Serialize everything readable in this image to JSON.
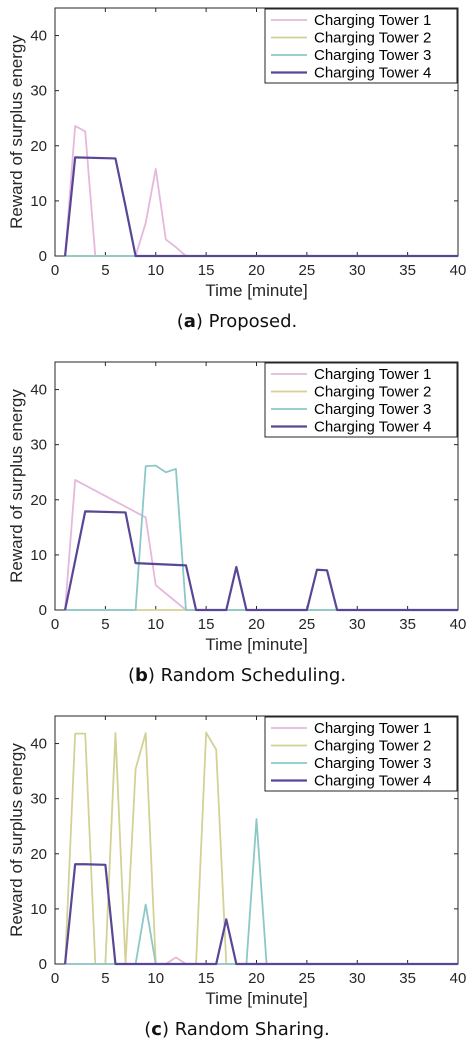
{
  "colors": {
    "Charging Tower 1": "#e6b8dc",
    "Charging Tower 2": "#d2d296",
    "Charging Tower 3": "#8cc8c8",
    "Charging Tower 4": "#5a4696"
  },
  "chart_data": [
    {
      "type": "line",
      "caption_letter": "a",
      "caption_text": "Proposed.",
      "xlabel": "Time [minute]",
      "ylabel": "Reward of surplus energy",
      "xlim": [
        0,
        40
      ],
      "ylim": [
        0,
        45
      ],
      "xticks": [
        0,
        5,
        10,
        15,
        20,
        25,
        30,
        35,
        40
      ],
      "yticks": [
        0,
        10,
        20,
        30,
        40
      ],
      "legend_position": "top-right",
      "series": [
        {
          "name": "Charging Tower 1",
          "points": [
            [
              1,
              0
            ],
            [
              2,
              23.6
            ],
            [
              3,
              22.6
            ],
            [
              4,
              0
            ],
            [
              8,
              0
            ],
            [
              9,
              6
            ],
            [
              10,
              15.8
            ],
            [
              11,
              3
            ],
            [
              12,
              1.6
            ],
            [
              13,
              0
            ],
            [
              40,
              0
            ]
          ]
        },
        {
          "name": "Charging Tower 2",
          "points": [
            [
              1,
              0
            ],
            [
              40,
              0
            ]
          ]
        },
        {
          "name": "Charging Tower 3",
          "points": [
            [
              1,
              0
            ],
            [
              40,
              0
            ]
          ]
        },
        {
          "name": "Charging Tower 4",
          "points": [
            [
              1,
              0
            ],
            [
              2,
              17.9
            ],
            [
              6,
              17.7
            ],
            [
              7,
              9
            ],
            [
              8,
              0
            ],
            [
              40,
              0
            ]
          ]
        }
      ]
    },
    {
      "type": "line",
      "caption_letter": "b",
      "caption_text": "Random Scheduling.",
      "xlabel": "Time [minute]",
      "ylabel": "Reward of surplus energy",
      "xlim": [
        0,
        40
      ],
      "ylim": [
        0,
        45
      ],
      "xticks": [
        0,
        5,
        10,
        15,
        20,
        25,
        30,
        35,
        40
      ],
      "yticks": [
        0,
        10,
        20,
        30,
        40
      ],
      "legend_position": "top-right",
      "series": [
        {
          "name": "Charging Tower 1",
          "points": [
            [
              1,
              0
            ],
            [
              2,
              23.6
            ],
            [
              9,
              16.8
            ],
            [
              10,
              4.5
            ],
            [
              13,
              0
            ],
            [
              40,
              0
            ]
          ]
        },
        {
          "name": "Charging Tower 2",
          "points": [
            [
              1,
              0
            ],
            [
              40,
              0
            ]
          ]
        },
        {
          "name": "Charging Tower 3",
          "points": [
            [
              1,
              0
            ],
            [
              8,
              0
            ],
            [
              9,
              26.1
            ],
            [
              10,
              26.2
            ],
            [
              11,
              25
            ],
            [
              12,
              25.6
            ],
            [
              13,
              0
            ],
            [
              40,
              0
            ]
          ]
        },
        {
          "name": "Charging Tower 4",
          "points": [
            [
              1,
              0
            ],
            [
              3,
              17.9
            ],
            [
              7,
              17.7
            ],
            [
              8,
              8.5
            ],
            [
              13,
              8.1
            ],
            [
              14,
              0
            ],
            [
              17,
              0
            ],
            [
              18,
              7.8
            ],
            [
              19,
              0
            ],
            [
              25,
              0
            ],
            [
              26,
              7.3
            ],
            [
              27,
              7.2
            ],
            [
              28,
              0
            ],
            [
              40,
              0
            ]
          ]
        }
      ]
    },
    {
      "type": "line",
      "caption_letter": "c",
      "caption_text": "Random Sharing.",
      "xlabel": "Time [minute]",
      "ylabel": "Reward of surplus energy",
      "xlim": [
        0,
        40
      ],
      "ylim": [
        0,
        45
      ],
      "xticks": [
        0,
        5,
        10,
        15,
        20,
        25,
        30,
        35,
        40
      ],
      "yticks": [
        0,
        10,
        20,
        30,
        40
      ],
      "legend_position": "top-right",
      "series": [
        {
          "name": "Charging Tower 1",
          "points": [
            [
              1,
              0
            ],
            [
              11,
              0
            ],
            [
              12,
              1.2
            ],
            [
              13,
              0
            ],
            [
              40,
              0
            ]
          ]
        },
        {
          "name": "Charging Tower 2",
          "points": [
            [
              1,
              0
            ],
            [
              2,
              41.8
            ],
            [
              3,
              41.8
            ],
            [
              4,
              0
            ],
            [
              5,
              0
            ],
            [
              6,
              41.9
            ],
            [
              7,
              0
            ],
            [
              8,
              35.4
            ],
            [
              9,
              41.9
            ],
            [
              10,
              0
            ],
            [
              14,
              0
            ],
            [
              15,
              42
            ],
            [
              16,
              38.9
            ],
            [
              17,
              0
            ],
            [
              40,
              0
            ]
          ]
        },
        {
          "name": "Charging Tower 3",
          "points": [
            [
              1,
              0
            ],
            [
              8,
              0
            ],
            [
              9,
              10.8
            ],
            [
              10,
              0
            ],
            [
              19,
              0
            ],
            [
              20,
              26.3
            ],
            [
              21,
              0
            ],
            [
              40,
              0
            ]
          ]
        },
        {
          "name": "Charging Tower 4",
          "points": [
            [
              1,
              0
            ],
            [
              2,
              18.1
            ],
            [
              3,
              18.1
            ],
            [
              5,
              18
            ],
            [
              6,
              0
            ],
            [
              16,
              0
            ],
            [
              17,
              8.1
            ],
            [
              18,
              0
            ],
            [
              40,
              0
            ]
          ]
        }
      ]
    }
  ]
}
